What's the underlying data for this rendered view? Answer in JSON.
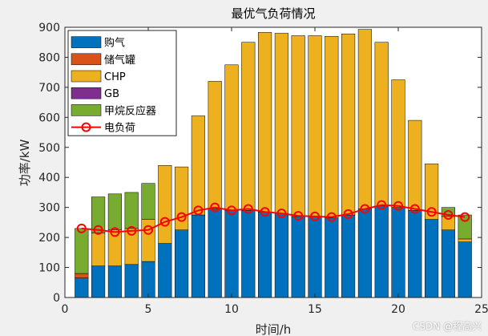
{
  "chart_data": {
    "type": "bar",
    "stacked": true,
    "title": "最优气负荷情况",
    "xlabel": "时间/h",
    "ylabel": "功率/kW",
    "xlim": [
      0,
      25
    ],
    "ylim": [
      0,
      900
    ],
    "xticks": [
      "0",
      "5",
      "10",
      "15",
      "20",
      "25"
    ],
    "yticks": [
      "0",
      "100",
      "200",
      "300",
      "400",
      "500",
      "600",
      "700",
      "800",
      "900"
    ],
    "x": [
      1,
      2,
      3,
      4,
      5,
      6,
      7,
      8,
      9,
      10,
      11,
      12,
      13,
      14,
      15,
      16,
      17,
      18,
      19,
      20,
      21,
      22,
      23,
      24
    ],
    "series": [
      {
        "name": "购气",
        "color": "#0072BD",
        "values": [
          65,
          105,
          105,
          110,
          120,
          180,
          225,
          275,
          295,
          290,
          290,
          285,
          280,
          270,
          270,
          265,
          275,
          295,
          305,
          300,
          290,
          260,
          225,
          185
        ]
      },
      {
        "name": "储气罐",
        "color": "#D95319",
        "values": [
          15,
          0,
          0,
          0,
          0,
          0,
          0,
          0,
          0,
          0,
          0,
          0,
          0,
          0,
          0,
          0,
          0,
          0,
          0,
          0,
          0,
          0,
          0,
          0
        ]
      },
      {
        "name": "CHP",
        "color": "#EDB120",
        "values": [
          0,
          110,
          120,
          120,
          140,
          260,
          210,
          330,
          425,
          485,
          560,
          598,
          600,
          602,
          602,
          605,
          603,
          598,
          545,
          425,
          300,
          185,
          45,
          10
        ]
      },
      {
        "name": "GB",
        "color": "#7E2F8E",
        "values": [
          0,
          0,
          0,
          0,
          0,
          0,
          0,
          0,
          0,
          0,
          0,
          0,
          0,
          0,
          0,
          0,
          0,
          0,
          0,
          0,
          0,
          0,
          0,
          0
        ]
      },
      {
        "name": "甲烷反应器",
        "color": "#77AC30",
        "values": [
          150,
          120,
          120,
          120,
          120,
          0,
          0,
          0,
          0,
          0,
          0,
          0,
          0,
          0,
          0,
          0,
          0,
          0,
          0,
          0,
          0,
          0,
          30,
          80
        ]
      }
    ],
    "line": {
      "name": "电负荷",
      "color": "#FF0000",
      "values": [
        230,
        225,
        218,
        222,
        225,
        252,
        268,
        290,
        300,
        290,
        295,
        285,
        280,
        272,
        270,
        268,
        278,
        295,
        308,
        305,
        295,
        285,
        275,
        268
      ]
    },
    "legend_position": "top-left",
    "grid": false
  },
  "watermark": "CSDN @程高兴"
}
